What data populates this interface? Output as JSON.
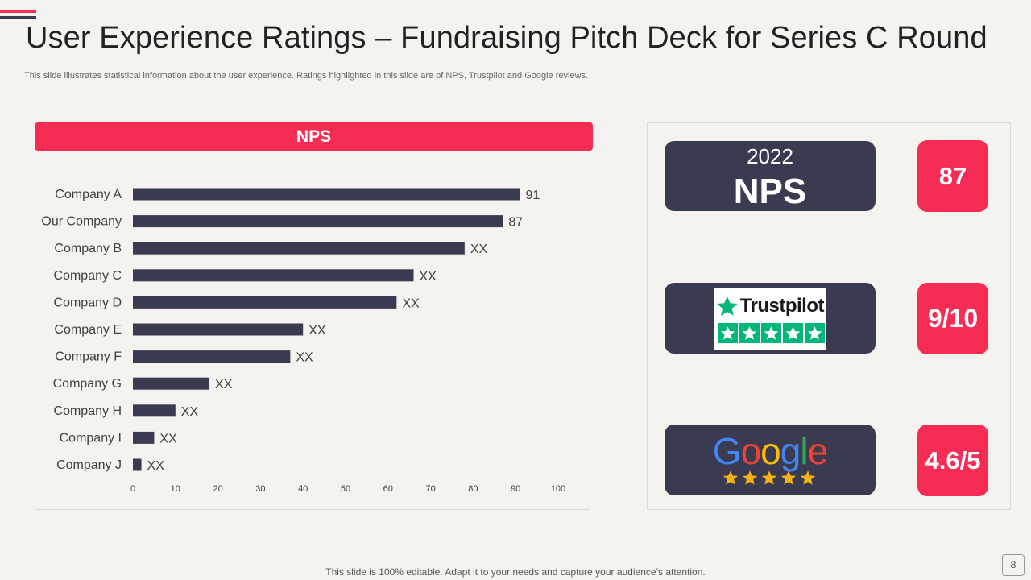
{
  "slide": {
    "title": "User Experience Ratings – Fundraising Pitch Deck for Series C Round",
    "subtitle": "This slide illustrates statistical information about the user experience. Ratings highlighted in this slide are of NPS, Trustpilot and Google reviews.",
    "footer": "This slide is 100% editable. Adapt it to your needs and capture your audience’s attention.",
    "page_number": "8"
  },
  "chart_data": {
    "type": "bar",
    "orientation": "horizontal",
    "title": "NPS",
    "categories": [
      "Company A",
      "Our Company",
      "Company B",
      "Company C",
      "Company D",
      "Company E",
      "Company F",
      "Company G",
      "Company H",
      "Company I",
      "Company J"
    ],
    "values": [
      91,
      87,
      78,
      66,
      62,
      40,
      37,
      18,
      10,
      5,
      2
    ],
    "data_labels": [
      "91",
      "87",
      "XX",
      "XX",
      "XX",
      "XX",
      "XX",
      "XX",
      "XX",
      "XX",
      "XX"
    ],
    "xlim": [
      0,
      100
    ],
    "xticks": [
      0,
      10,
      20,
      30,
      40,
      50,
      60,
      70,
      80,
      90,
      100
    ],
    "xlabel": "",
    "ylabel": "",
    "grid": false,
    "bar_color": "#3a3b50"
  },
  "ratings": {
    "nps": {
      "year": "2022",
      "label": "NPS",
      "score": "87"
    },
    "trustpilot": {
      "brand": "Trustpilot",
      "stars": 5,
      "score": "9/10"
    },
    "google": {
      "brand": "Google",
      "stars": 5,
      "score": "4.6/5"
    }
  },
  "colors": {
    "accent": "#f72c55",
    "dark": "#3a3b50",
    "trustpilot_green": "#00b67a",
    "star_gold": "#f9b115",
    "google_blue": "#4285F4",
    "google_red": "#EA4335",
    "google_yellow": "#FBBC05",
    "google_green": "#34A853"
  }
}
